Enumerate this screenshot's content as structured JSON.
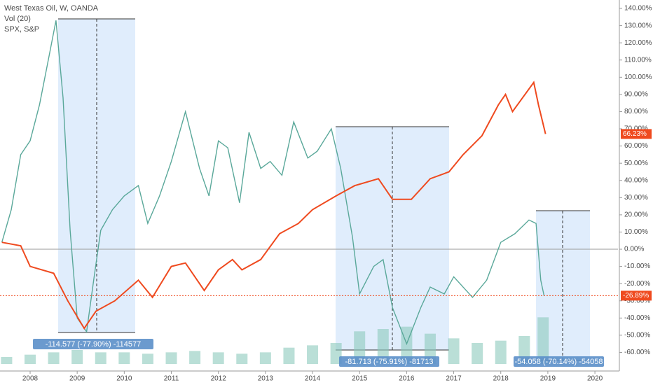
{
  "chart_data": {
    "type": "line",
    "legend": [
      "West Texas Oil, W, OANDA",
      "Vol (20)",
      "SPX, S&P"
    ],
    "xlim": [
      2007.36,
      2020.49
    ],
    "xticks": [
      2008,
      2009,
      2010,
      2011,
      2012,
      2013,
      2014,
      2015,
      2016,
      2017,
      2018,
      2019,
      2020
    ],
    "ylim": [
      -70.8,
      144.9
    ],
    "yticks": [
      {
        "value": -60,
        "label": "-60.00%"
      },
      {
        "value": -50,
        "label": "-50.00%"
      },
      {
        "value": -40,
        "label": "-40.00%"
      },
      {
        "value": -30,
        "label": "-30.00%"
      },
      {
        "value": -20,
        "label": "-20.00%"
      },
      {
        "value": -10,
        "label": "-10.00%"
      },
      {
        "value": 0,
        "label": "0.00%"
      },
      {
        "value": 10,
        "label": "10.00%"
      },
      {
        "value": 20,
        "label": "20.00%"
      },
      {
        "value": 30,
        "label": "30.00%"
      },
      {
        "value": 40,
        "label": "40.00%"
      },
      {
        "value": 50,
        "label": "50.00%"
      },
      {
        "value": 60,
        "label": "60.00%"
      },
      {
        "value": 70,
        "label": "70.00%"
      },
      {
        "value": 80,
        "label": "80.00%"
      },
      {
        "value": 90,
        "label": "90.00%"
      },
      {
        "value": 100,
        "label": "100.00%"
      },
      {
        "value": 110,
        "label": "110.00%"
      },
      {
        "value": 120,
        "label": "120.00%"
      },
      {
        "value": 130,
        "label": "130.00%"
      },
      {
        "value": 140,
        "label": "140.00%"
      }
    ],
    "series": [
      {
        "name": "West Texas Oil, W, OANDA",
        "color": "#5aa89a",
        "x": [
          2007.4,
          2007.6,
          2007.8,
          2008.0,
          2008.2,
          2008.4,
          2008.55,
          2008.7,
          2008.85,
          2009.0,
          2009.2,
          2009.35,
          2009.5,
          2009.75,
          2010.0,
          2010.3,
          2010.5,
          2010.75,
          2011.0,
          2011.3,
          2011.6,
          2011.8,
          2012.0,
          2012.2,
          2012.45,
          2012.65,
          2012.9,
          2013.1,
          2013.35,
          2013.6,
          2013.9,
          2014.1,
          2014.4,
          2014.6,
          2014.85,
          2015.0,
          2015.3,
          2015.5,
          2015.7,
          2016.0,
          2016.3,
          2016.5,
          2016.8,
          2017.0,
          2017.4,
          2017.7,
          2018.0,
          2018.3,
          2018.6,
          2018.75,
          2018.85,
          2018.92
        ],
        "values": [
          4,
          23,
          55,
          63,
          84,
          112,
          133,
          88,
          11,
          -40,
          -48,
          -18,
          11,
          23,
          31,
          37,
          15,
          31,
          51,
          80,
          47,
          31,
          63,
          59,
          27,
          68,
          47,
          51,
          43,
          74,
          53,
          57,
          70,
          47,
          7,
          -26,
          -10,
          -6,
          -34,
          -55,
          -34,
          -22,
          -26,
          -16,
          -28,
          -18,
          4,
          9,
          17,
          15,
          -18,
          -27
        ]
      },
      {
        "name": "SPX, S&P",
        "color": "#ef4a1f",
        "x": [
          2007.4,
          2007.8,
          2008.0,
          2008.5,
          2008.8,
          2009.15,
          2009.4,
          2009.8,
          2010.3,
          2010.6,
          2011.0,
          2011.3,
          2011.7,
          2012.0,
          2012.3,
          2012.5,
          2012.9,
          2013.3,
          2013.7,
          2014.0,
          2014.5,
          2014.9,
          2015.4,
          2015.7,
          2016.1,
          2016.5,
          2016.9,
          2017.2,
          2017.6,
          2017.95,
          2018.1,
          2018.25,
          2018.7,
          2018.8,
          2018.95
        ],
        "values": [
          4,
          2,
          -10,
          -14,
          -30,
          -46,
          -36,
          -30,
          -18,
          -28,
          -10,
          -8,
          -24,
          -12,
          -6,
          -12,
          -6,
          9,
          15,
          23,
          31,
          37,
          41,
          29,
          29,
          41,
          45,
          55,
          66,
          84,
          90,
          80,
          97,
          84,
          67
        ]
      }
    ],
    "volume": {
      "name": "Vol (20)",
      "color": "#8cc9bd",
      "x": [
        2007.5,
        2008.0,
        2008.5,
        2009.0,
        2009.5,
        2010.0,
        2010.5,
        2011.0,
        2011.5,
        2012.0,
        2012.5,
        2013.0,
        2013.5,
        2014.0,
        2014.5,
        2015.0,
        2015.5,
        2016.0,
        2016.5,
        2017.0,
        2017.5,
        2018.0,
        2018.5,
        2018.9
      ],
      "values": [
        15,
        20,
        25,
        30,
        25,
        25,
        22,
        25,
        28,
        25,
        22,
        25,
        35,
        40,
        45,
        70,
        75,
        80,
        65,
        55,
        45,
        50,
        60,
        100
      ],
      "vlim": [
        0,
        300
      ]
    },
    "badges": [
      "66.23%",
      "-26.89%"
    ],
    "measures": [
      "-114.577 (-77.90%) -114577",
      "-81.713 (-75.91%) -81713",
      "-54.058 (-70.14%) -54058"
    ]
  }
}
